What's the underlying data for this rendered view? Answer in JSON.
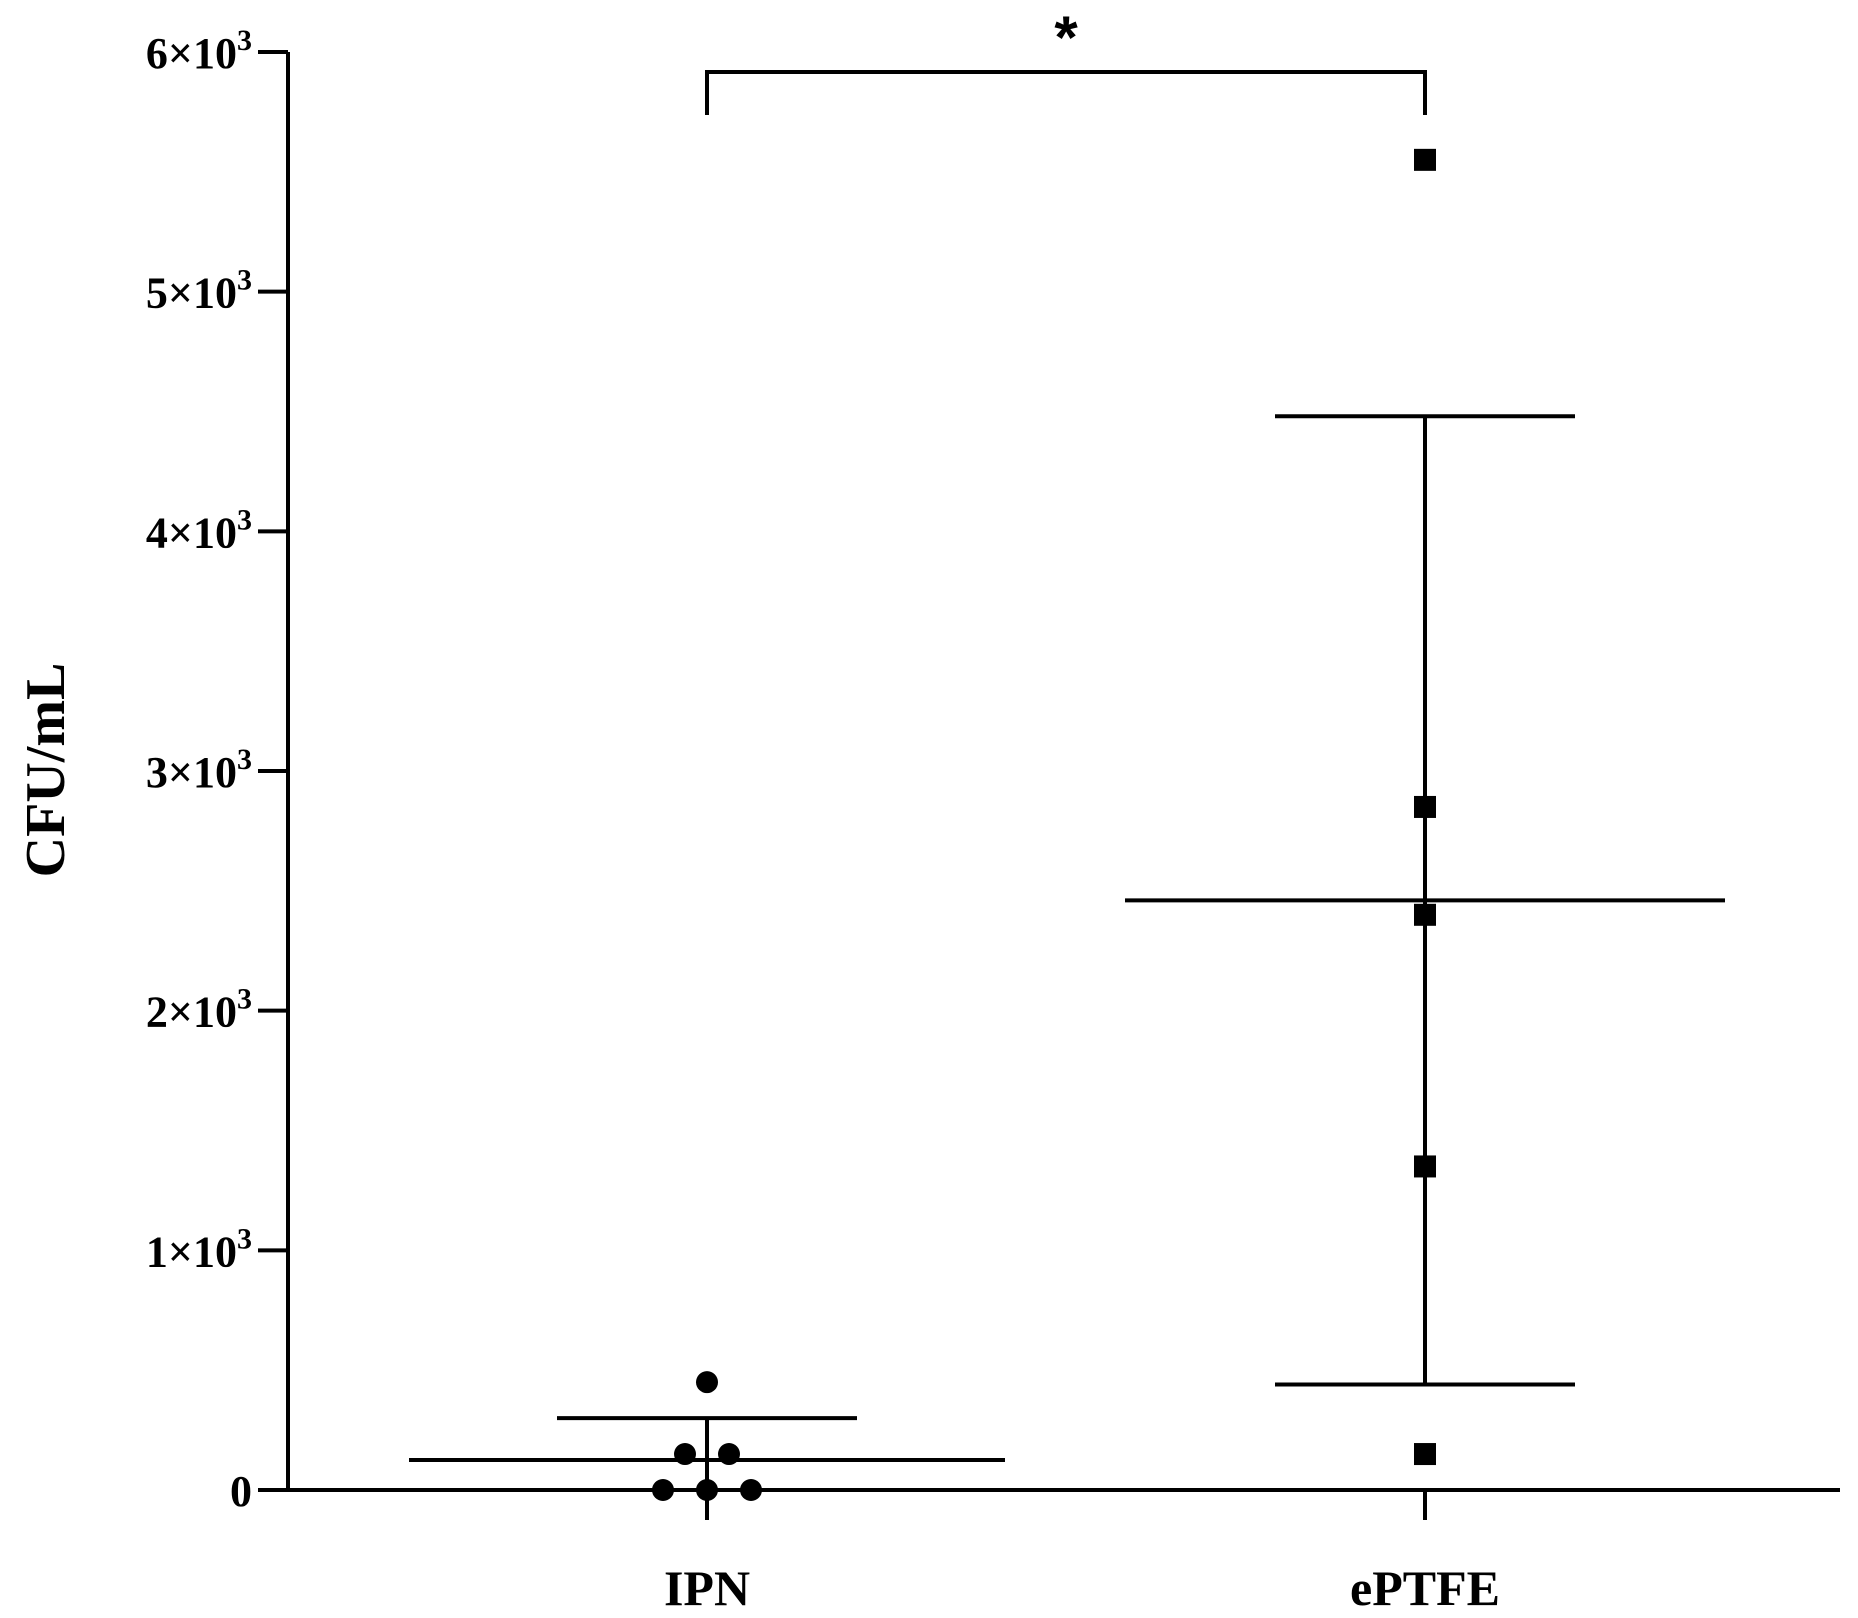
{
  "chart_data": {
    "type": "scatter",
    "ylabel": "CFU/mL",
    "xlabel": "",
    "ylim": [
      0,
      6000
    ],
    "yticks": [
      {
        "value": 0,
        "base": "0",
        "exp": ""
      },
      {
        "value": 1000,
        "base": "1×10",
        "exp": "3"
      },
      {
        "value": 2000,
        "base": "2×10",
        "exp": "3"
      },
      {
        "value": 3000,
        "base": "3×10",
        "exp": "3"
      },
      {
        "value": 4000,
        "base": "4×10",
        "exp": "3"
      },
      {
        "value": 5000,
        "base": "5×10",
        "exp": "3"
      },
      {
        "value": 6000,
        "base": "6×10",
        "exp": "3"
      }
    ],
    "categories": [
      "IPN",
      "ePTFE"
    ],
    "groups": [
      {
        "name": "IPN",
        "marker": "circle",
        "points": [
          0,
          0,
          0,
          150,
          150,
          450
        ],
        "mean": 125,
        "error_low": 0,
        "error_high": 300
      },
      {
        "name": "ePTFE",
        "marker": "square",
        "points": [
          5550,
          2850,
          2400,
          1350,
          150
        ],
        "mean": 2460,
        "error_low": 440,
        "error_high": 4480
      }
    ],
    "significance": {
      "label": "*",
      "from": "IPN",
      "to": "ePTFE"
    },
    "grid": false,
    "legend": "none"
  },
  "colors": {
    "ink": "#000000",
    "background": "#ffffff"
  }
}
